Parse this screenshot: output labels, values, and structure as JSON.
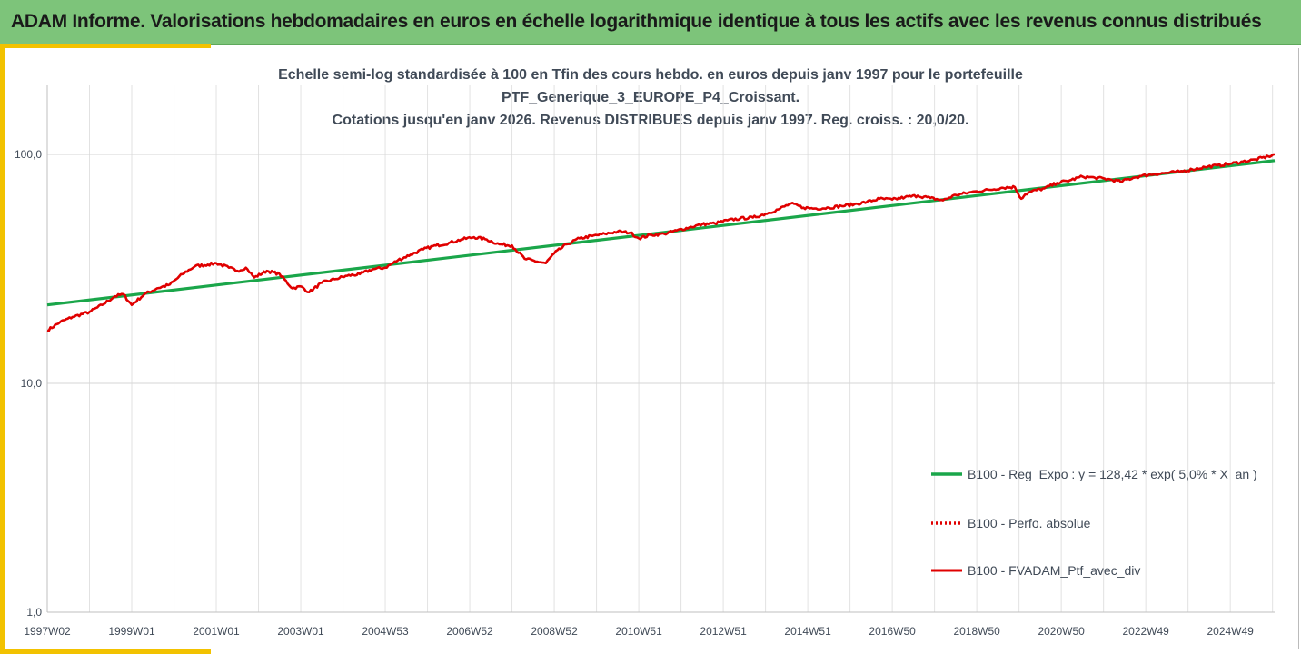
{
  "banner": {
    "title": "ADAM Informe. Valorisations hebdomadaires en euros en échelle logarithmique identique à tous les actifs avec les revenus connus distribués"
  },
  "colors": {
    "banner": "#7dc47a",
    "accent": "#f2c200",
    "regression": "#1aa64a",
    "portfolio": "#e00000",
    "grid": "#e2e2e2",
    "text": "#404a57"
  },
  "chart_data": {
    "type": "line",
    "title": [
      "Echelle semi-log standardisée à 100 en Tfin des cours hebdo.  en euros depuis janv 1997 pour le portefeuille",
      "PTF_Generique_3_EUROPE_P4_Croissant.",
      "Cotations  jusqu'en janv 2026. Revenus DISTRIBUES depuis janv 1997. Reg. croiss. : 20,0/20."
    ],
    "yscale": "log",
    "ylim": [
      1,
      200
    ],
    "yticks": [
      1,
      10,
      100
    ],
    "ytick_labels": [
      "1,0",
      "10,0",
      "100,0"
    ],
    "xlim": [
      1997.0,
      2026.05
    ],
    "xtick_labels": [
      "1997W02",
      "1999W01",
      "2001W01",
      "2003W01",
      "2004W53",
      "2006W52",
      "2008W52",
      "2010W51",
      "2012W51",
      "2014W51",
      "2016W50",
      "2018W50",
      "2020W50",
      "2022W49",
      "2024W49"
    ],
    "xticks": [
      1997.0,
      1999.0,
      2001.0,
      2003.0,
      2005.0,
      2007.0,
      2009.0,
      2011.0,
      2013.0,
      2015.0,
      2017.0,
      2019.0,
      2021.0,
      2023.0,
      2025.0
    ],
    "grid": "vertical-per-year and horizontal at major ticks",
    "legend_position": "bottom-right",
    "series": [
      {
        "name": "B100 - Reg_Expo : y = 128,42 * exp( 5,0% *  X_an )",
        "style": "solid-green",
        "x": [
          1997.0,
          2026.05
        ],
        "values": [
          22.0,
          94.0
        ]
      },
      {
        "name": "B100 - Perfo. absolue",
        "style": "dotted-red",
        "x": [],
        "values": []
      },
      {
        "name": "B100 - FVADAM_Ptf_avec_div",
        "style": "solid-red",
        "x": [
          1997.0,
          1997.3,
          1997.6,
          1998.0,
          1998.3,
          1998.6,
          1998.8,
          1999.0,
          1999.3,
          1999.6,
          1999.9,
          2000.2,
          2000.5,
          2000.8,
          2001.0,
          2001.3,
          2001.5,
          2001.7,
          2001.9,
          2002.2,
          2002.5,
          2002.8,
          2003.0,
          2003.2,
          2003.5,
          2003.8,
          2004.1,
          2004.4,
          2004.7,
          2005.0,
          2005.3,
          2005.6,
          2005.9,
          2006.2,
          2006.5,
          2006.8,
          2007.1,
          2007.4,
          2007.7,
          2008.0,
          2008.3,
          2008.6,
          2008.8,
          2009.0,
          2009.3,
          2009.6,
          2009.9,
          2010.2,
          2010.5,
          2010.8,
          2011.0,
          2011.3,
          2011.6,
          2011.9,
          2012.2,
          2012.5,
          2012.8,
          2013.1,
          2013.4,
          2013.7,
          2014.0,
          2014.3,
          2014.6,
          2014.9,
          2015.2,
          2015.5,
          2015.8,
          2016.1,
          2016.4,
          2016.7,
          2017.0,
          2017.3,
          2017.6,
          2017.9,
          2018.2,
          2018.5,
          2018.8,
          2019.0,
          2019.3,
          2019.6,
          2019.9,
          2020.05,
          2020.15,
          2020.3,
          2020.6,
          2020.9,
          2021.2,
          2021.5,
          2021.8,
          2022.1,
          2022.4,
          2022.7,
          2022.9,
          2023.2,
          2023.5,
          2023.8,
          2024.1,
          2024.4,
          2024.7,
          2025.0,
          2025.3,
          2025.6,
          2025.9,
          2026.05
        ],
        "values": [
          17.0,
          18.5,
          19.5,
          20.5,
          22.0,
          24.0,
          24.5,
          22.0,
          24.5,
          26.0,
          27.0,
          30.0,
          32.5,
          33.0,
          33.5,
          32.0,
          31.0,
          32.0,
          29.0,
          31.0,
          30.0,
          26.0,
          26.5,
          25.0,
          27.5,
          28.5,
          29.5,
          30.0,
          31.5,
          32.0,
          34.5,
          36.5,
          38.5,
          40.0,
          41.0,
          42.5,
          43.5,
          42.5,
          40.5,
          40.0,
          35.0,
          34.0,
          33.5,
          37.0,
          40.5,
          43.0,
          44.0,
          45.0,
          46.0,
          45.5,
          43.0,
          44.5,
          45.0,
          46.5,
          48.0,
          49.5,
          50.0,
          51.5,
          52.5,
          53.0,
          55.0,
          57.5,
          61.0,
          58.5,
          58.0,
          58.5,
          59.5,
          60.5,
          62.0,
          64.0,
          63.5,
          65.0,
          66.0,
          64.5,
          63.0,
          66.5,
          68.0,
          69.0,
          70.0,
          71.5,
          72.0,
          64.0,
          67.0,
          69.0,
          71.0,
          75.0,
          77.0,
          80.0,
          79.0,
          78.0,
          76.0,
          79.0,
          80.5,
          82.0,
          83.0,
          84.0,
          86.0,
          88.0,
          89.5,
          91.0,
          93.0,
          95.0,
          98.0,
          100.0
        ]
      }
    ]
  }
}
